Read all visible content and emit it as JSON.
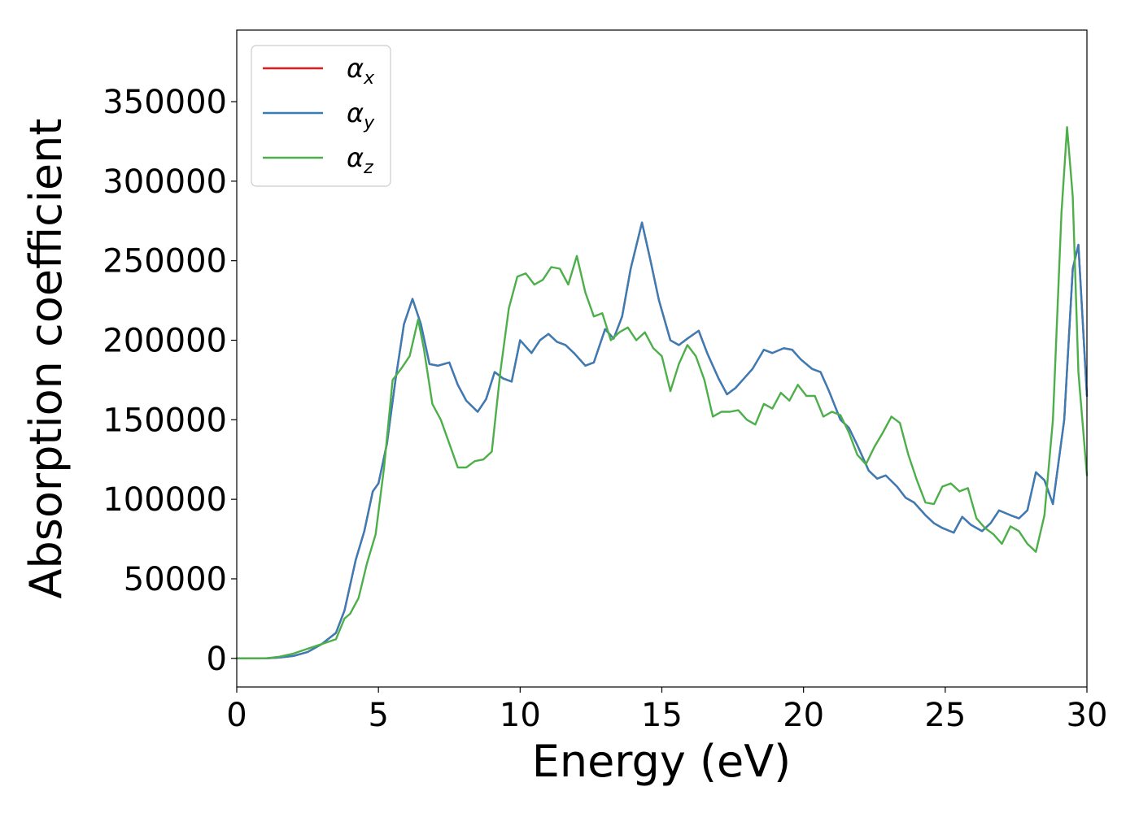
{
  "chart_data": {
    "type": "line",
    "title": "",
    "xlabel": "Energy (eV)",
    "ylabel": "Absorption coefficient",
    "xlim": [
      0,
      30
    ],
    "ylim": [
      -18000,
      395000
    ],
    "xticks": [
      0,
      5,
      10,
      15,
      20,
      25,
      30
    ],
    "yticks": [
      0,
      50000,
      100000,
      150000,
      200000,
      250000,
      300000,
      350000
    ],
    "grid": false,
    "legend_position": "top-left",
    "series": [
      {
        "name": "α_x",
        "symbol": "α",
        "subscript": "x",
        "color": "#e41a1c",
        "x": [
          0,
          1,
          1.5,
          2,
          2.5,
          3,
          3.5,
          3.8,
          4.2,
          4.5,
          4.8,
          5.0,
          5.3,
          5.6,
          5.9,
          6.2,
          6.5,
          6.8,
          7.1,
          7.5,
          7.8,
          8.1,
          8.5,
          8.8,
          9.1,
          9.4,
          9.7,
          10.0,
          10.4,
          10.7,
          11.0,
          11.3,
          11.6,
          11.9,
          12.3,
          12.6,
          13.0,
          13.3,
          13.6,
          13.9,
          14.3,
          14.6,
          14.9,
          15.3,
          15.6,
          15.9,
          16.3,
          16.6,
          17.0,
          17.3,
          17.6,
          17.9,
          18.2,
          18.6,
          18.9,
          19.3,
          19.6,
          19.9,
          20.3,
          20.6,
          20.9,
          21.3,
          21.6,
          21.9,
          22.3,
          22.6,
          22.9,
          23.3,
          23.6,
          23.9,
          24.3,
          24.6,
          24.9,
          25.3,
          25.6,
          25.9,
          26.3,
          26.6,
          26.9,
          27.3,
          27.6,
          27.9,
          28.2,
          28.5,
          28.8,
          29.2,
          29.5,
          29.7,
          30.0
        ],
        "values": [
          0,
          0,
          500,
          1500,
          4000,
          9000,
          16000,
          30000,
          62000,
          80000,
          105000,
          110000,
          135000,
          175000,
          210000,
          226000,
          210000,
          185000,
          184000,
          186000,
          172000,
          162000,
          155000,
          163000,
          180000,
          176000,
          174000,
          200000,
          192000,
          200000,
          204000,
          199000,
          197000,
          192000,
          184000,
          186000,
          207000,
          201000,
          215000,
          245000,
          274000,
          250000,
          225000,
          200000,
          197000,
          201000,
          206000,
          192000,
          176000,
          166000,
          170000,
          176000,
          182000,
          194000,
          192000,
          195000,
          194000,
          188000,
          182000,
          180000,
          168000,
          150000,
          145000,
          134000,
          118000,
          113000,
          115000,
          108000,
          101000,
          98000,
          90000,
          85000,
          82000,
          79000,
          89000,
          84000,
          80000,
          85000,
          93000,
          90000,
          88000,
          93000,
          117000,
          112000,
          97000,
          150000,
          245000,
          260000,
          165000
        ]
      },
      {
        "name": "α_y",
        "symbol": "α",
        "subscript": "y",
        "color": "#377eb8",
        "x": [
          0,
          1,
          1.5,
          2,
          2.5,
          3,
          3.5,
          3.8,
          4.2,
          4.5,
          4.8,
          5.0,
          5.3,
          5.6,
          5.9,
          6.2,
          6.5,
          6.8,
          7.1,
          7.5,
          7.8,
          8.1,
          8.5,
          8.8,
          9.1,
          9.4,
          9.7,
          10.0,
          10.4,
          10.7,
          11.0,
          11.3,
          11.6,
          11.9,
          12.3,
          12.6,
          13.0,
          13.3,
          13.6,
          13.9,
          14.3,
          14.6,
          14.9,
          15.3,
          15.6,
          15.9,
          16.3,
          16.6,
          17.0,
          17.3,
          17.6,
          17.9,
          18.2,
          18.6,
          18.9,
          19.3,
          19.6,
          19.9,
          20.3,
          20.6,
          20.9,
          21.3,
          21.6,
          21.9,
          22.3,
          22.6,
          22.9,
          23.3,
          23.6,
          23.9,
          24.3,
          24.6,
          24.9,
          25.3,
          25.6,
          25.9,
          26.3,
          26.6,
          26.9,
          27.3,
          27.6,
          27.9,
          28.2,
          28.5,
          28.8,
          29.2,
          29.5,
          29.7,
          30.0
        ],
        "values": [
          0,
          0,
          500,
          1500,
          4000,
          9000,
          16000,
          30000,
          62000,
          80000,
          105000,
          110000,
          135000,
          175000,
          210000,
          226000,
          210000,
          185000,
          184000,
          186000,
          172000,
          162000,
          155000,
          163000,
          180000,
          176000,
          174000,
          200000,
          192000,
          200000,
          204000,
          199000,
          197000,
          192000,
          184000,
          186000,
          207000,
          201000,
          215000,
          245000,
          274000,
          250000,
          225000,
          200000,
          197000,
          201000,
          206000,
          192000,
          176000,
          166000,
          170000,
          176000,
          182000,
          194000,
          192000,
          195000,
          194000,
          188000,
          182000,
          180000,
          168000,
          150000,
          145000,
          134000,
          118000,
          113000,
          115000,
          108000,
          101000,
          98000,
          90000,
          85000,
          82000,
          79000,
          89000,
          84000,
          80000,
          85000,
          93000,
          90000,
          88000,
          93000,
          117000,
          112000,
          97000,
          150000,
          245000,
          260000,
          165000
        ]
      },
      {
        "name": "α_z",
        "symbol": "α",
        "subscript": "z",
        "color": "#4daf4a",
        "x": [
          0,
          1,
          1.5,
          2,
          2.5,
          3,
          3.5,
          3.8,
          4.0,
          4.3,
          4.6,
          4.9,
          5.2,
          5.5,
          5.8,
          6.1,
          6.4,
          6.6,
          6.9,
          7.2,
          7.5,
          7.8,
          8.1,
          8.4,
          8.7,
          9.0,
          9.3,
          9.6,
          9.9,
          10.2,
          10.5,
          10.8,
          11.1,
          11.4,
          11.7,
          12.0,
          12.3,
          12.6,
          12.9,
          13.2,
          13.5,
          13.8,
          14.1,
          14.4,
          14.7,
          15.0,
          15.3,
          15.6,
          15.9,
          16.2,
          16.5,
          16.8,
          17.1,
          17.4,
          17.7,
          18.0,
          18.3,
          18.6,
          18.9,
          19.2,
          19.5,
          19.8,
          20.1,
          20.4,
          20.7,
          21.0,
          21.3,
          21.6,
          21.9,
          22.2,
          22.5,
          22.8,
          23.1,
          23.4,
          23.7,
          24.0,
          24.3,
          24.6,
          24.9,
          25.2,
          25.5,
          25.8,
          26.1,
          26.4,
          26.7,
          27.0,
          27.3,
          27.6,
          27.9,
          28.2,
          28.5,
          28.8,
          29.1,
          29.3,
          29.5,
          29.7,
          30.0
        ],
        "values": [
          0,
          0,
          1000,
          3000,
          6000,
          9000,
          12000,
          25000,
          28000,
          38000,
          60000,
          78000,
          120000,
          175000,
          182000,
          190000,
          213000,
          195000,
          160000,
          150000,
          135000,
          120000,
          120000,
          124000,
          125000,
          130000,
          180000,
          220000,
          240000,
          242000,
          235000,
          238000,
          246000,
          245000,
          235000,
          253000,
          230000,
          215000,
          217000,
          200000,
          205000,
          208000,
          200000,
          205000,
          195000,
          190000,
          168000,
          185000,
          197000,
          190000,
          175000,
          152000,
          155000,
          155000,
          156000,
          150000,
          147000,
          160000,
          157000,
          167000,
          162000,
          172000,
          165000,
          165000,
          152000,
          155000,
          153000,
          142000,
          128000,
          122000,
          133000,
          142000,
          152000,
          148000,
          128000,
          112000,
          98000,
          97000,
          108000,
          110000,
          105000,
          107000,
          88000,
          82000,
          78000,
          72000,
          83000,
          80000,
          72000,
          67000,
          90000,
          150000,
          280000,
          334000,
          290000,
          180000,
          115000
        ]
      }
    ]
  }
}
